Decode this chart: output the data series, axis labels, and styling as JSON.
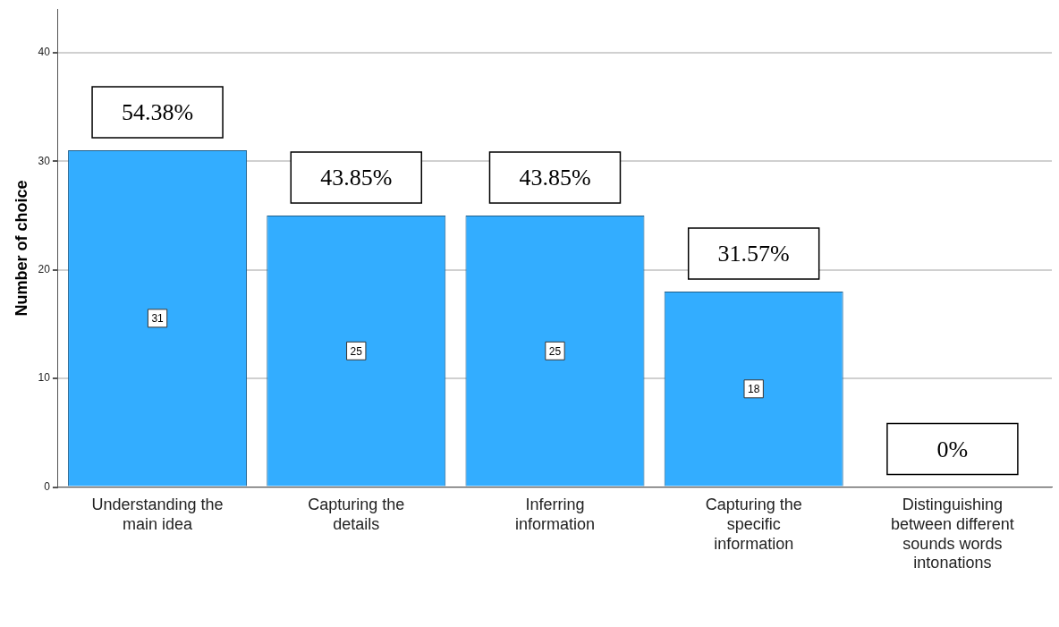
{
  "chart_data": {
    "type": "bar",
    "ylabel": "Number of choice",
    "categories": [
      "Understanding the main idea",
      "Capturing the details",
      "Inferring information",
      "Capturing the specific information",
      "Distinguishing between different sounds words intonations"
    ],
    "values": [
      31,
      25,
      25,
      18,
      0
    ],
    "color": "#33adff",
    "value_labels": [
      "31",
      "25",
      "25",
      "18",
      null
    ],
    "ylim": [
      0,
      44
    ],
    "yticks": [
      0,
      10,
      20,
      30,
      40
    ],
    "grid": "y",
    "legend": false,
    "annotations": [
      {
        "text": "54.38%",
        "x": "Understanding the main idea",
        "y": 31
      },
      {
        "text": "43.85%",
        "x": "Capturing the details",
        "y": 25
      },
      {
        "text": "43.85%",
        "x": "Inferring information",
        "y": 25
      },
      {
        "text": "31.57%",
        "x": "Capturing the specific information",
        "y": 18
      },
      {
        "text": "0%",
        "x": "Distinguishing between different sounds words intonations",
        "y": 0
      }
    ]
  }
}
